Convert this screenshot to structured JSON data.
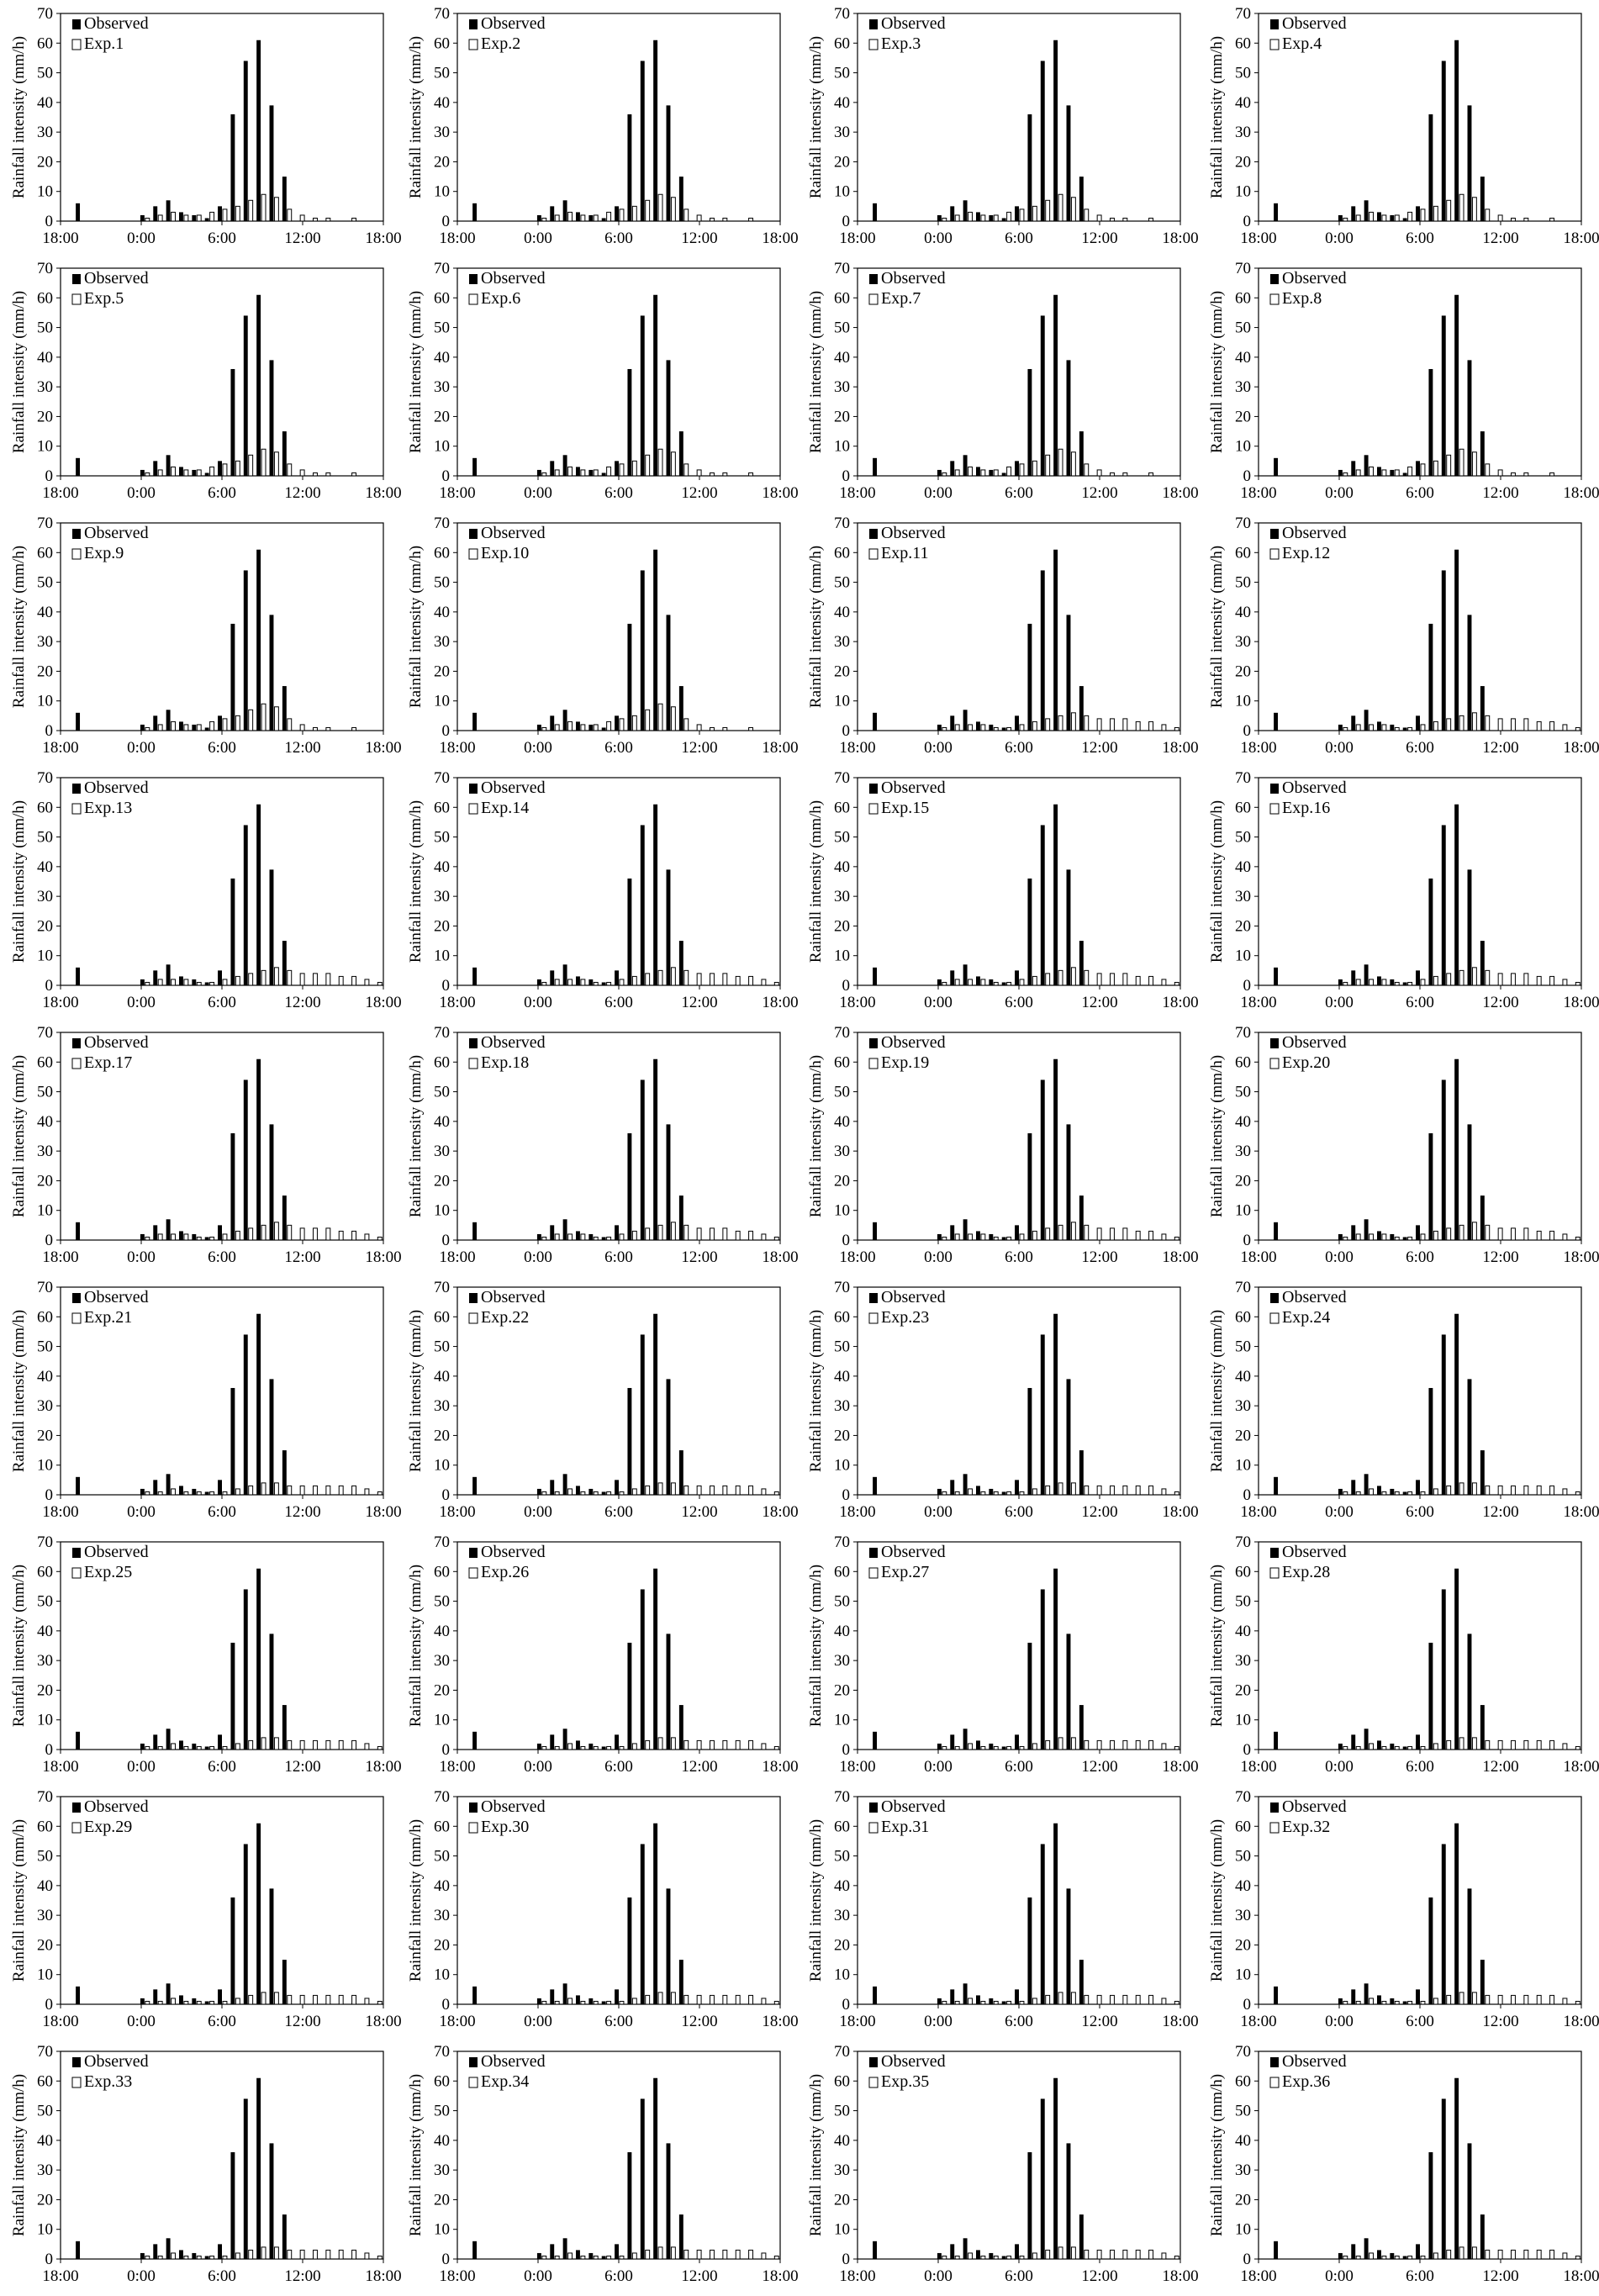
{
  "chart_data": {
    "type": "bar",
    "panel_count": 36,
    "layout": "9 rows x 4 columns",
    "ylabel": "Rainfall intensity (mm/h)",
    "ylim": [
      0,
      70
    ],
    "yticks": [
      "0",
      "10",
      "20",
      "30",
      "40",
      "50",
      "60",
      "70"
    ],
    "xticks": [
      "18:00",
      "0:00",
      "6:00",
      "12:00",
      "18:00"
    ],
    "observed_name": "Observed",
    "experiment_names": [
      "Exp.1",
      "Exp.2",
      "Exp.3",
      "Exp.4",
      "Exp.5",
      "Exp.6",
      "Exp.7",
      "Exp.8",
      "Exp.9",
      "Exp.10",
      "Exp.11",
      "Exp.12",
      "Exp.13",
      "Exp.14",
      "Exp.15",
      "Exp.16",
      "Exp.17",
      "Exp.18",
      "Exp.19",
      "Exp.20",
      "Exp.21",
      "Exp.22",
      "Exp.23",
      "Exp.24",
      "Exp.25",
      "Exp.26",
      "Exp.27",
      "Exp.28",
      "Exp.29",
      "Exp.30",
      "Exp.31",
      "Exp.32",
      "Exp.33",
      "Exp.34",
      "Exp.35",
      "Exp.36"
    ],
    "legend": "top-left",
    "grid": false,
    "observed_colour": "#000000",
    "experiment_colour": "#ffffff",
    "hours_from_1800": [
      0,
      1,
      2,
      3,
      4,
      5,
      6,
      7,
      8,
      9,
      10,
      11,
      12,
      13,
      14,
      15,
      16,
      17,
      18,
      19,
      20,
      21,
      22,
      23,
      24
    ],
    "observed": [
      0,
      6,
      0,
      0,
      0,
      0,
      2,
      5,
      7,
      3,
      2,
      1,
      5,
      36,
      54,
      61,
      39,
      15,
      0,
      0,
      0,
      0,
      0,
      0,
      0
    ],
    "experiment_shapes": {
      "early_peak": [
        0,
        0,
        0,
        0,
        0,
        0,
        1,
        2,
        3,
        2,
        2,
        3,
        4,
        5,
        7,
        9,
        8,
        4,
        2,
        1,
        1,
        0,
        1,
        0,
        0
      ],
      "late_spread": [
        0,
        0,
        0,
        0,
        0,
        0,
        1,
        2,
        2,
        2,
        1,
        1,
        2,
        3,
        4,
        5,
        6,
        5,
        4,
        4,
        4,
        3,
        3,
        2,
        1
      ],
      "flat_low": [
        0,
        0,
        0,
        0,
        0,
        0,
        1,
        1,
        2,
        1,
        1,
        1,
        1,
        2,
        3,
        4,
        4,
        3,
        3,
        3,
        3,
        3,
        3,
        2,
        1
      ]
    }
  }
}
